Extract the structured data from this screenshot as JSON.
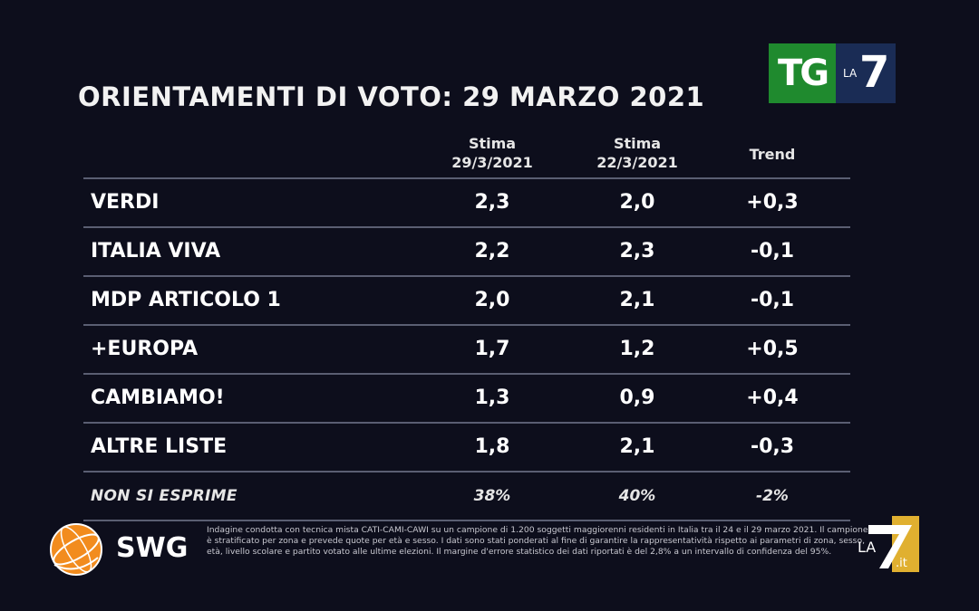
{
  "title": "ORIENTAMENTI DI VOTO: 29 MARZO 2021",
  "broadcaster_logo": {
    "left": "TG",
    "small": "LA",
    "right": "7"
  },
  "table": {
    "columns": [
      {
        "line1": "Stima",
        "line2": "29/3/2021"
      },
      {
        "line1": "Stima",
        "line2": "22/3/2021"
      },
      {
        "line1": "Trend",
        "line2": ""
      }
    ]
  },
  "chart_data": {
    "type": "table",
    "title": "ORIENTAMENTI DI VOTO: 29 MARZO 2021",
    "columns": [
      "Stima 29/3/2021",
      "Stima 22/3/2021",
      "Trend"
    ],
    "rows": [
      {
        "party": "VERDI",
        "current": "2,3",
        "previous": "2,0",
        "trend": "+0,3"
      },
      {
        "party": "ITALIA VIVA",
        "current": "2,2",
        "previous": "2,3",
        "trend": "-0,1"
      },
      {
        "party": "MDP ARTICOLO 1",
        "current": "2,0",
        "previous": "2,1",
        "trend": "-0,1"
      },
      {
        "party": "+EUROPA",
        "current": "1,7",
        "previous": "1,2",
        "trend": "+0,5"
      },
      {
        "party": "CAMBIAMO!",
        "current": "1,3",
        "previous": "0,9",
        "trend": "+0,4"
      },
      {
        "party": "ALTRE LISTE",
        "current": "1,8",
        "previous": "2,1",
        "trend": "-0,3"
      },
      {
        "party": "NON SI ESPRIME",
        "current": "38%",
        "previous": "40%",
        "trend": "-2%"
      }
    ]
  },
  "footer": {
    "pollster": "SWG",
    "note": "Indagine condotta con tecnica mista CATI-CAMI-CAWI su un campione di 1.200 soggetti maggiorenni residenti in Italia tra il 24 e il 29 marzo 2021. Il campione è stratificato per zona e prevede quote per età e sesso. I dati sono stati ponderati al fine di garantire la rappresentatività rispetto ai parametri di zona, sesso, età, livello scolare e partito votato alle ultime elezioni. Il margine d'errore statistico dei dati riportati è del 2,8% a un intervallo di confidenza del 95%.",
    "channel_logo": {
      "small": "LA",
      "big": "7",
      "suffix": ".it"
    }
  },
  "colors": {
    "background": "#0d0e1c",
    "tg_green": "#1f8a2e",
    "tg_blue": "#1a2c55",
    "swg_orange": "#f28c1e",
    "la7_gold": "#e0b030",
    "divider": "#5a5e72"
  }
}
